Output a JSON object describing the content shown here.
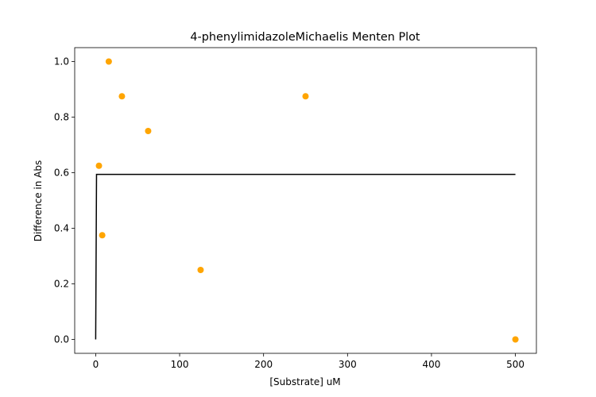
{
  "chart_data": {
    "type": "scatter",
    "title": "4-phenylimidazoleMichaelis Menten Plot",
    "xlabel": "[Substrate] uM",
    "ylabel": "Difference in Abs",
    "xlim": [
      -25,
      525
    ],
    "ylim": [
      -0.05,
      1.05
    ],
    "xticks": [
      0,
      100,
      200,
      300,
      400,
      500
    ],
    "xtick_labels": [
      "0",
      "100",
      "200",
      "300",
      "400",
      "500"
    ],
    "yticks": [
      0.0,
      0.2,
      0.4,
      0.6,
      0.8,
      1.0
    ],
    "ytick_labels": [
      "0.0",
      "0.2",
      "0.4",
      "0.6",
      "0.8",
      "1.0"
    ],
    "grid": false,
    "series": [
      {
        "type": "scatter",
        "color": "#FFA500",
        "x": [
          3.9,
          7.8,
          15.6,
          31.25,
          62.5,
          125,
          250,
          500
        ],
        "y": [
          0.625,
          0.375,
          1.0,
          0.875,
          0.75,
          0.25,
          0.875,
          0.0
        ]
      },
      {
        "type": "line",
        "color": "#000000",
        "x": [
          0,
          1,
          500
        ],
        "y": [
          0.0,
          0.594,
          0.594
        ]
      }
    ]
  }
}
